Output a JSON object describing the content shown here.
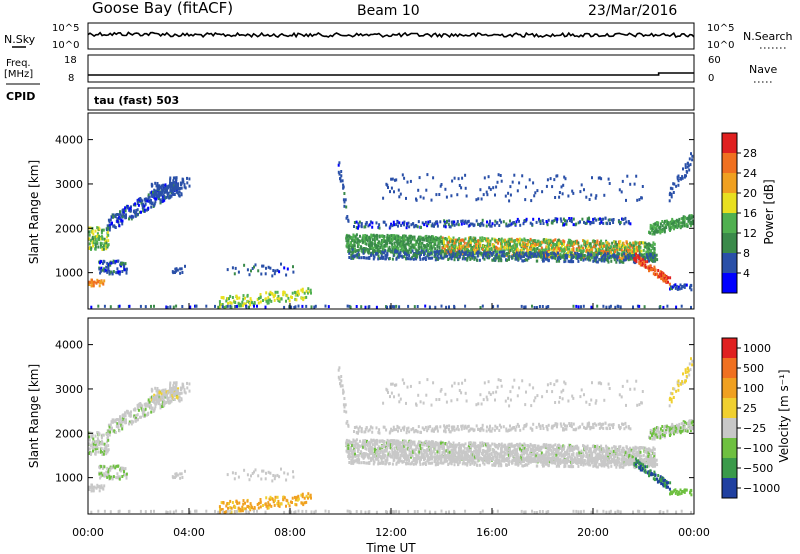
{
  "header": {
    "station": "Goose Bay (fitACF)",
    "beam": "Beam 10",
    "date": "23/Mar/2016"
  },
  "nsky": {
    "left_label": "N.Sky",
    "right_label": "N.Search",
    "tick_top": "10^5",
    "tick_bottom": "10^0"
  },
  "freq": {
    "left_label": "Freq.",
    "unit_label": "[MHz]",
    "left_tick_top": "18",
    "left_tick_bottom": "8",
    "right_label": "Nave",
    "right_tick_top": "60",
    "right_tick_bottom": "0"
  },
  "cpid": {
    "label": "CPID",
    "value": "tau (fast) 503"
  },
  "colors": {
    "power": [
      "#0000ff",
      "#2a50a8",
      "#3a8a4a",
      "#50b050",
      "#e8e020",
      "#f0a020",
      "#f07020",
      "#e02020"
    ],
    "velocity": [
      "#2040a0",
      "#3a9a4a",
      "#6ec040",
      "#c8c8c8",
      "#f0d030",
      "#f0a020",
      "#f07020",
      "#e02020"
    ]
  },
  "chart_data": [
    {
      "type": "heatmap",
      "name": "power",
      "xlabel": "",
      "ylabel": "Slant Range [km]",
      "xlim": [
        0,
        24
      ],
      "ylim": [
        180,
        4600
      ],
      "y_ticks": [
        "1000",
        "2000",
        "3000",
        "4000"
      ],
      "colorbar": {
        "label": "Power [dB]",
        "ticks": [
          "4",
          "8",
          "12",
          "16",
          "20",
          "24",
          "28"
        ],
        "range": [
          0,
          32
        ]
      }
    },
    {
      "type": "heatmap",
      "name": "velocity",
      "xlabel": "Time UT",
      "ylabel": "Slant Range [km]",
      "xlim": [
        0,
        24
      ],
      "ylim": [
        180,
        4600
      ],
      "x_ticks": [
        "00:00",
        "04:00",
        "08:00",
        "12:00",
        "16:00",
        "20:00",
        "00:00"
      ],
      "y_ticks": [
        "1000",
        "2000",
        "3000",
        "4000"
      ],
      "colorbar": {
        "label": "Velocity [m s⁻¹]",
        "ticks": [
          "1000",
          "500",
          "100",
          "25",
          "−25",
          "−100",
          "−500",
          "−1000"
        ]
      }
    }
  ]
}
